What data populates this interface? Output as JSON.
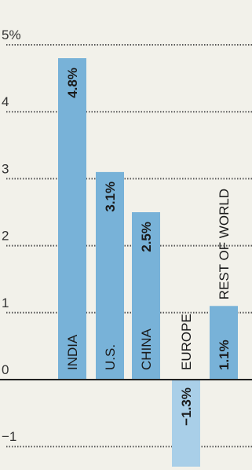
{
  "chart_data": {
    "type": "bar",
    "title": "",
    "xlabel": "",
    "ylabel": "",
    "ylim": [
      -1.3,
      5
    ],
    "y_ticks": [
      {
        "value": 5,
        "label": "5%"
      },
      {
        "value": 4,
        "label": "4"
      },
      {
        "value": 3,
        "label": "3"
      },
      {
        "value": 2,
        "label": "2"
      },
      {
        "value": 1,
        "label": "1"
      },
      {
        "value": 0,
        "label": "0"
      },
      {
        "value": -1,
        "label": "−1"
      }
    ],
    "categories": [
      "INDIA",
      "U.S.",
      "CHINA",
      "EUROPE",
      "REST OF WORLD"
    ],
    "values": [
      4.8,
      3.1,
      2.5,
      -1.3,
      1.1
    ],
    "data_labels": [
      "4.8%",
      "3.1%",
      "2.5%",
      "−1.3%",
      "1.1%"
    ],
    "grid": true,
    "colors": {
      "bar_positive": "#78b2d8",
      "bar_negative": "#a9cfe8",
      "background": "#f2f1ea",
      "grid": "#555555",
      "axis": "#222222"
    }
  }
}
